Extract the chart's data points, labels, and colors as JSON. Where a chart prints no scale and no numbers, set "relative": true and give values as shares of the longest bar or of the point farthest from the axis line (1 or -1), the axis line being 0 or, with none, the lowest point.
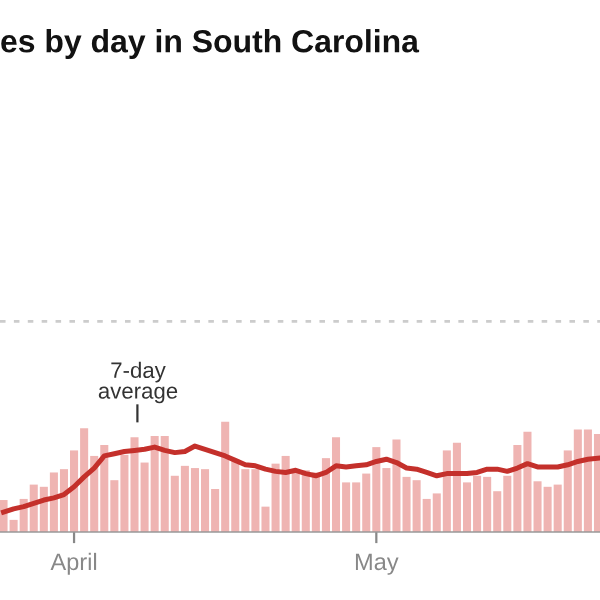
{
  "chart_data": {
    "type": "bar",
    "title": "es by day in South Carolina",
    "relative": true,
    "categories": [
      null,
      null,
      null,
      null,
      null,
      null,
      null,
      "April",
      null,
      null,
      null,
      null,
      null,
      null,
      null,
      null,
      null,
      null,
      null,
      null,
      null,
      null,
      null,
      null,
      null,
      null,
      null,
      null,
      null,
      null,
      null,
      null,
      null,
      null,
      null,
      null,
      null,
      "May",
      null,
      null,
      null,
      null,
      null,
      null,
      null,
      null,
      null,
      null,
      null,
      null,
      null,
      null,
      null,
      null,
      null,
      null,
      null,
      null,
      null,
      null
    ],
    "series": [
      {
        "color": "#efb4b2",
        "values": [
          0.29,
          0.11,
          0.3,
          0.43,
          0.41,
          0.54,
          0.57,
          0.74,
          0.94,
          0.69,
          0.79,
          0.47,
          0.7,
          0.86,
          0.63,
          0.87,
          0.87,
          0.51,
          0.6,
          0.58,
          0.57,
          0.39,
          1.0,
          0.66,
          0.57,
          0.57,
          0.23,
          0.62,
          0.69,
          0.57,
          0.56,
          0.54,
          0.67,
          0.86,
          0.45,
          0.45,
          0.53,
          0.77,
          0.58,
          0.84,
          0.5,
          0.47,
          0.3,
          0.35,
          0.74,
          0.81,
          0.45,
          0.51,
          0.5,
          0.37,
          0.51,
          0.79,
          0.91,
          0.46,
          0.41,
          0.43,
          0.74,
          0.93,
          0.93,
          0.89
        ]
      },
      {
        "type": "line",
        "color": "#c4302b",
        "values": [
          0.18,
          0.21,
          0.23,
          0.26,
          0.29,
          0.31,
          0.34,
          0.41,
          0.5,
          0.58,
          0.69,
          0.71,
          0.73,
          0.74,
          0.75,
          0.77,
          0.74,
          0.72,
          0.73,
          0.78,
          0.75,
          0.72,
          0.69,
          0.65,
          0.61,
          0.6,
          0.57,
          0.55,
          0.54,
          0.56,
          0.53,
          0.51,
          0.54,
          0.6,
          0.59,
          0.6,
          0.61,
          0.64,
          0.66,
          0.63,
          0.58,
          0.57,
          0.54,
          0.51,
          0.53,
          0.53,
          0.53,
          0.54,
          0.57,
          0.57,
          0.55,
          0.58,
          0.62,
          0.59,
          0.59,
          0.59,
          0.61,
          0.64,
          0.66,
          0.67
        ]
      }
    ],
    "ref_lines": [
      {
        "axis": "y",
        "value": 1.91,
        "color": "#cccccc",
        "line_style": "dotted"
      }
    ],
    "annotations": [
      "7-day\naverage"
    ]
  }
}
